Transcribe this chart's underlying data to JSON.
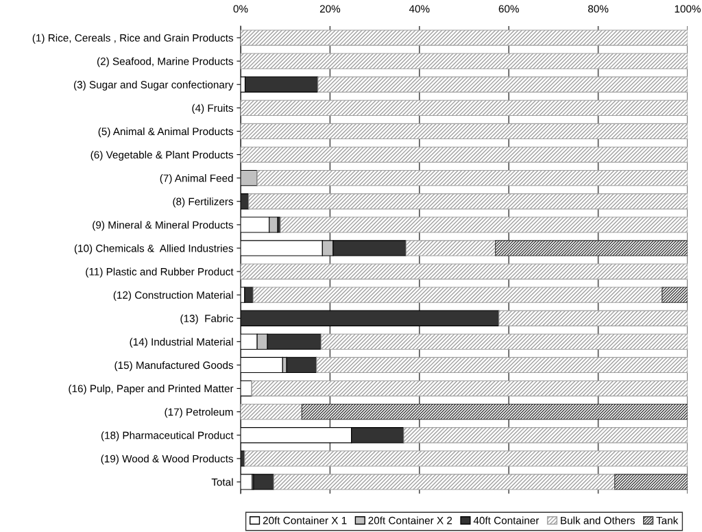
{
  "chart_data": {
    "type": "bar",
    "orientation": "horizontal",
    "stacked": true,
    "categories": [
      "(1) Rice, Cereals , Rice and Grain Products",
      "(2) Seafood, Marine Products",
      "(3) Sugar and Sugar confectionary",
      "(4) Fruits",
      "(5) Animal & Animal Products",
      "(6) Vegetable & Plant Products",
      "(7) Animal Feed",
      "(8) Fertilizers",
      "(9) Mineral & Mineral Products",
      "(10) Chemicals &  Allied Industries",
      "(11) Plastic and Rubber Product",
      "(12) Construction Material",
      "(13)  Fabric",
      "(14) Industrial Material",
      "(15) Manufactured Goods",
      "(16) Pulp, Paper and Printed Matter",
      "(17) Petroleum",
      "(18) Pharmaceutical Product",
      "(19) Wood & Wood Products",
      "Total"
    ],
    "series": [
      {
        "name": "20ft Container X 1",
        "color": "#ffffff",
        "values": [
          0,
          0,
          1.0,
          0,
          0,
          0,
          0,
          0,
          6.4,
          18.3,
          0,
          0.9,
          0,
          3.7,
          9.4,
          2.5,
          null,
          24.8,
          0,
          2.6
        ]
      },
      {
        "name": "20ft Container X 2",
        "color": "#c0c0c0",
        "values": [
          0,
          0,
          0,
          0,
          0,
          0,
          3.7,
          0,
          1.9,
          2.4,
          0,
          0,
          0,
          2.3,
          0.9,
          0,
          0,
          0,
          0,
          0.3
        ]
      },
      {
        "name": "40ft Container",
        "color": "#333333",
        "values": [
          0,
          0,
          16.3,
          0,
          0,
          0,
          0,
          1.8,
          0.6,
          16.3,
          0,
          1.9,
          57.8,
          12.0,
          6.7,
          0,
          0,
          11.7,
          0.9,
          4.5
        ]
      },
      {
        "name": "Bulk and Others",
        "color": "#a0a0a0",
        "values": [
          100,
          100,
          82.7,
          100,
          100,
          100,
          96.3,
          98.2,
          91.1,
          20.0,
          100,
          91.5,
          42.2,
          82.0,
          83.0,
          97.5,
          13.7,
          63.5,
          99.1,
          76.3
        ]
      },
      {
        "name": "Tank",
        "color": "#3a3a3a",
        "values": [
          0,
          0,
          0,
          0,
          0,
          0,
          0,
          0,
          0,
          43.0,
          0,
          5.7,
          0,
          0,
          0,
          0,
          86.3,
          0,
          0,
          16.3
        ]
      }
    ],
    "xlim": [
      0,
      100
    ],
    "xticks": [
      {
        "value": 0,
        "label": "0%"
      },
      {
        "value": 20,
        "label": "20%"
      },
      {
        "value": 40,
        "label": "40%"
      },
      {
        "value": 60,
        "label": "60%"
      },
      {
        "value": 80,
        "label": "80%"
      },
      {
        "value": 100,
        "label": "100%"
      }
    ],
    "grid": "x",
    "legend": "bottom"
  }
}
